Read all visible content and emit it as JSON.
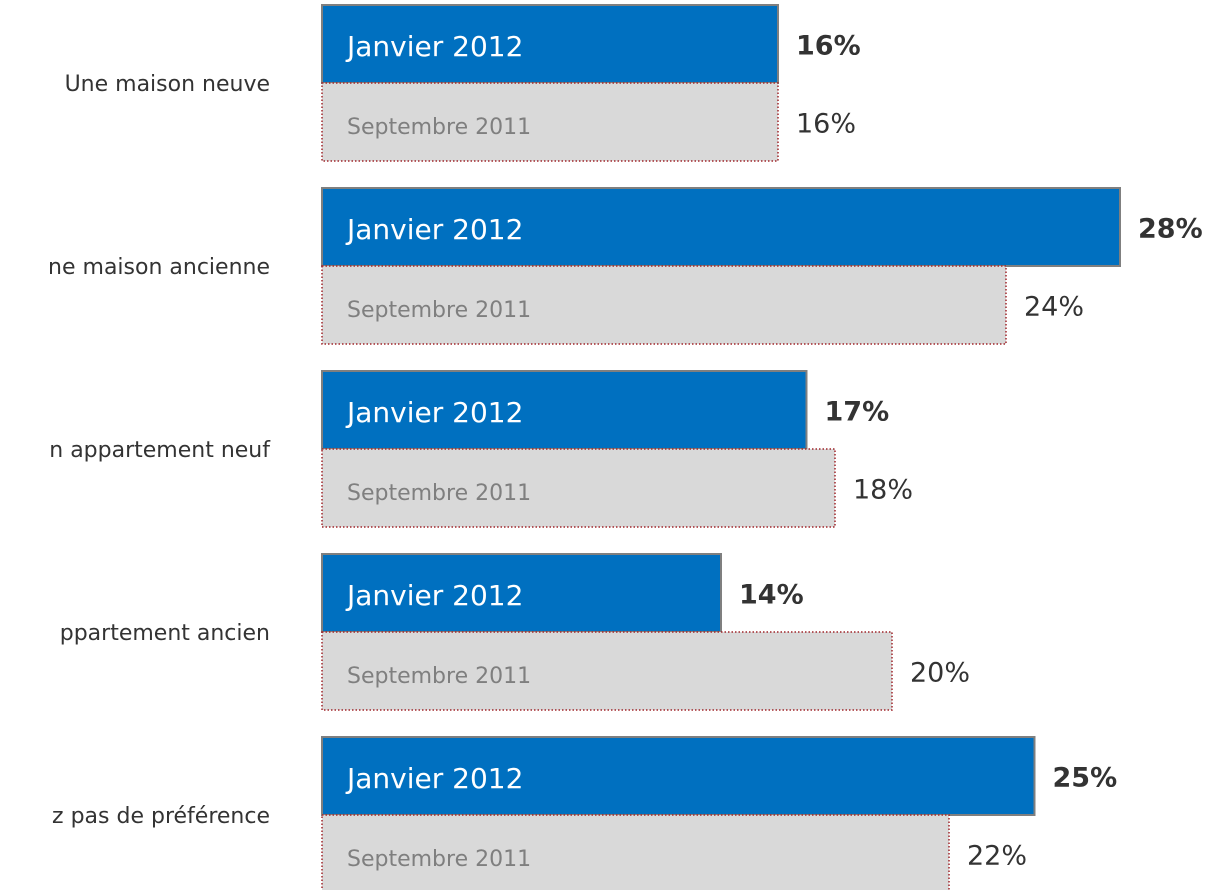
{
  "chart_data": {
    "type": "bar",
    "orientation": "horizontal",
    "categories": [
      "Une maison neuve",
      "ne maison ancienne",
      "n appartement neuf",
      "ppartement ancien",
      "z pas de préférence"
    ],
    "series": [
      {
        "name": "Janvier 2012",
        "color": "#0070c0",
        "values": [
          16,
          28,
          17,
          14,
          25
        ],
        "value_labels": [
          "16%",
          "28%",
          "17%",
          "14%",
          "25%"
        ]
      },
      {
        "name": "Septembre 2011",
        "color": "#d9d9d9",
        "values": [
          16,
          24,
          18,
          20,
          22
        ],
        "value_labels": [
          "16%",
          "24%",
          "18%",
          "20%",
          "22%"
        ]
      }
    ]
  }
}
